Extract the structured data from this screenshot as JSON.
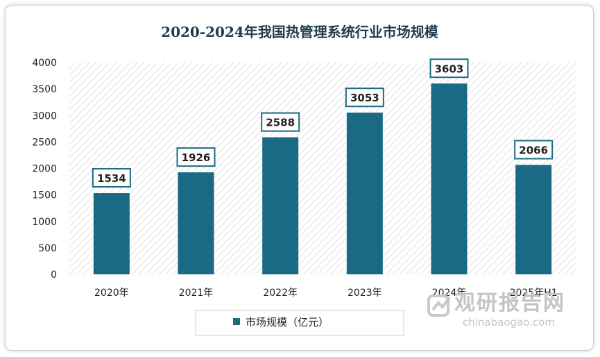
{
  "chart_data": {
    "type": "bar",
    "title": "2020-2024年我国热管理系统行业市场规模",
    "categories": [
      "2020年",
      "2021年",
      "2022年",
      "2023年",
      "2024年",
      "2025年H1"
    ],
    "series": [
      {
        "name": "市场规模（亿元）",
        "values": [
          1534,
          1926,
          2588,
          3053,
          3603,
          2066
        ]
      }
    ],
    "ylim": [
      0,
      4000
    ],
    "yticks": [
      0,
      500,
      1000,
      1500,
      2000,
      2500,
      3000,
      3500,
      4000
    ],
    "xlabel": "",
    "ylabel": "",
    "legend": "bottom",
    "bar_color": "#1a6985"
  },
  "watermark": {
    "name": "观研报告网",
    "url": "chinabaogao.com"
  }
}
